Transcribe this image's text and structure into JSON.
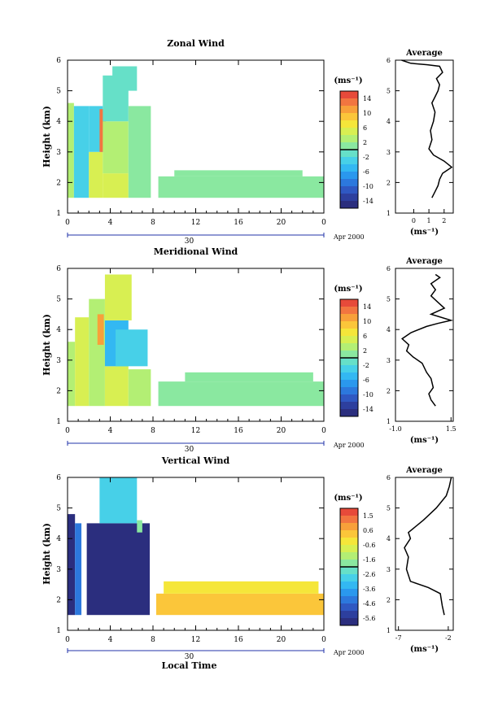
{
  "figure": {
    "x_axis_label": "Local Time",
    "date_label": "Apr 2000",
    "day_label": "30"
  },
  "colorbar": {
    "colors": [
      "#2b2e7e",
      "#2d3f9e",
      "#2f58c2",
      "#2c78dd",
      "#2a98ee",
      "#33b8f2",
      "#47d0e8",
      "#66e0c8",
      "#8ae8a0",
      "#b3ef74",
      "#d8ef52",
      "#f5e63a",
      "#fbc63a",
      "#f8a03a",
      "#f27540",
      "#e74a3a"
    ]
  },
  "chart_data": [
    {
      "type": "heatmap",
      "title": "Zonal Wind",
      "xlabel": "",
      "ylabel": "Height (km)",
      "xlim": [
        0,
        24
      ],
      "ylim": [
        1,
        6
      ],
      "xticks": [
        "0",
        "4",
        "8",
        "12",
        "16",
        "20",
        "0"
      ],
      "yticks": [
        "1",
        "2",
        "3",
        "4",
        "5",
        "6"
      ],
      "units": "(ms⁻¹)",
      "colorbar_labels": [
        "14",
        "10",
        "6",
        "2",
        "-2",
        "-6",
        "-10",
        "-14"
      ],
      "colorbar_range": [
        -16,
        16
      ],
      "grid": false,
      "regions": [
        {
          "x": [
            0,
            0.6
          ],
          "y": [
            1.5,
            4.6
          ],
          "value": 2
        },
        {
          "x": [
            0.6,
            2.0
          ],
          "y": [
            1.5,
            4.5
          ],
          "value": -3
        },
        {
          "x": [
            2.0,
            3.3
          ],
          "y": [
            1.5,
            3.0
          ],
          "value": 4
        },
        {
          "x": [
            2.0,
            3.3
          ],
          "y": [
            3.0,
            4.5
          ],
          "value": -4
        },
        {
          "x": [
            3.0,
            3.6
          ],
          "y": [
            3.0,
            4.4
          ],
          "value": 13
        },
        {
          "x": [
            3.3,
            5.7
          ],
          "y": [
            1.5,
            2.3
          ],
          "value": 4
        },
        {
          "x": [
            3.3,
            5.7
          ],
          "y": [
            2.3,
            4.0
          ],
          "value": 2
        },
        {
          "x": [
            3.3,
            5.7
          ],
          "y": [
            4.0,
            5.5
          ],
          "value": -1
        },
        {
          "x": [
            4.2,
            6.5
          ],
          "y": [
            5.0,
            5.8
          ],
          "value": -2
        },
        {
          "x": [
            5.7,
            7.8
          ],
          "y": [
            1.5,
            4.5
          ],
          "value": 1
        },
        {
          "x": [
            8.5,
            24
          ],
          "y": [
            1.5,
            2.2
          ],
          "value": 0
        },
        {
          "x": [
            10.0,
            22.0
          ],
          "y": [
            2.2,
            2.4
          ],
          "value": 0
        }
      ],
      "profile": {
        "title": "Average",
        "xlabel": "(ms⁻¹)",
        "xlim": [
          -1.2,
          2.6
        ],
        "xticks": [
          "0",
          "1",
          "2"
        ],
        "yticks": [
          "1",
          "2",
          "3",
          "4",
          "5",
          "6"
        ],
        "x": [
          1.2,
          1.4,
          1.6,
          1.7,
          1.9,
          2.2,
          2.5,
          2.0,
          1.3,
          1.0,
          1.2,
          1.1,
          1.3,
          1.4,
          1.2,
          1.4,
          1.6,
          1.7,
          1.5,
          1.9,
          1.7,
          0.9,
          -0.2,
          -0.8
        ],
        "y": [
          1.5,
          1.7,
          1.9,
          2.1,
          2.3,
          2.4,
          2.5,
          2.7,
          2.9,
          3.1,
          3.4,
          3.7,
          4.0,
          4.3,
          4.6,
          4.8,
          5.0,
          5.2,
          5.4,
          5.6,
          5.8,
          5.85,
          5.9,
          6.0
        ]
      }
    },
    {
      "type": "heatmap",
      "title": "Meridional Wind",
      "xlabel": "",
      "ylabel": "Height (km)",
      "xlim": [
        0,
        24
      ],
      "ylim": [
        1,
        6
      ],
      "xticks": [
        "0",
        "4",
        "8",
        "12",
        "16",
        "20",
        "0"
      ],
      "yticks": [
        "1",
        "2",
        "3",
        "4",
        "5",
        "6"
      ],
      "units": "(ms⁻¹)",
      "colorbar_labels": [
        "14",
        "10",
        "6",
        "2",
        "-2",
        "-6",
        "-10",
        "-14"
      ],
      "colorbar_range": [
        -16,
        16
      ],
      "grid": false,
      "regions": [
        {
          "x": [
            0,
            0.7
          ],
          "y": [
            1.5,
            3.6
          ],
          "value": 2
        },
        {
          "x": [
            0.7,
            2.0
          ],
          "y": [
            1.5,
            4.4
          ],
          "value": 4
        },
        {
          "x": [
            2.0,
            3.5
          ],
          "y": [
            1.5,
            5.0
          ],
          "value": 3
        },
        {
          "x": [
            2.8,
            3.4
          ],
          "y": [
            3.5,
            4.5
          ],
          "value": 11
        },
        {
          "x": [
            3.5,
            5.7
          ],
          "y": [
            1.5,
            2.8
          ],
          "value": 5
        },
        {
          "x": [
            3.5,
            5.7
          ],
          "y": [
            2.8,
            4.3
          ],
          "value": -5
        },
        {
          "x": [
            4.5,
            7.5
          ],
          "y": [
            2.8,
            4.0
          ],
          "value": -3
        },
        {
          "x": [
            3.5,
            6.0
          ],
          "y": [
            4.3,
            5.8
          ],
          "value": 4
        },
        {
          "x": [
            5.7,
            7.8
          ],
          "y": [
            1.5,
            2.7
          ],
          "value": 2
        },
        {
          "x": [
            8.5,
            24
          ],
          "y": [
            1.5,
            2.3
          ],
          "value": 1
        },
        {
          "x": [
            11.0,
            23.0
          ],
          "y": [
            2.3,
            2.6
          ],
          "value": 0
        }
      ],
      "profile": {
        "title": "Average",
        "xlabel": "(ms⁻¹)",
        "xlim": [
          -1.0,
          1.6
        ],
        "xticks": [
          "-1.0",
          "1.5"
        ],
        "yticks": [
          "1",
          "2",
          "3",
          "4",
          "5",
          "6"
        ],
        "x": [
          0.8,
          0.6,
          0.5,
          0.7,
          0.6,
          0.4,
          0.2,
          -0.2,
          -0.5,
          -0.4,
          -0.7,
          -0.3,
          0.4,
          0.9,
          1.5,
          0.6,
          1.2,
          0.9,
          0.6,
          0.8,
          0.6,
          1.0,
          0.8
        ],
        "y": [
          1.5,
          1.7,
          1.9,
          2.1,
          2.4,
          2.6,
          2.9,
          3.1,
          3.3,
          3.5,
          3.7,
          3.9,
          4.1,
          4.2,
          4.3,
          4.5,
          4.7,
          4.9,
          5.1,
          5.3,
          5.5,
          5.7,
          5.8
        ]
      }
    },
    {
      "type": "heatmap",
      "title": "Vertical Wind",
      "xlabel": "Local Time",
      "ylabel": "Height (km)",
      "xlim": [
        0,
        24
      ],
      "ylim": [
        1,
        6
      ],
      "xticks": [
        "0",
        "4",
        "8",
        "12",
        "16",
        "20",
        "0"
      ],
      "yticks": [
        "1",
        "2",
        "3",
        "4",
        "5",
        "6"
      ],
      "units": "(ms⁻¹)",
      "colorbar_labels": [
        "1.5",
        "0.6",
        "-0.6",
        "-1.6",
        "-2.6",
        "-3.6",
        "-4.6",
        "-5.6"
      ],
      "colorbar_range": [
        -6.1,
        2.0
      ],
      "grid": false,
      "regions": [
        {
          "x": [
            0,
            0.7
          ],
          "y": [
            1.5,
            4.8
          ],
          "value": -6
        },
        {
          "x": [
            0.7,
            1.3
          ],
          "y": [
            1.5,
            4.5
          ],
          "value": -4.5
        },
        {
          "x": [
            1.8,
            7.7
          ],
          "y": [
            1.5,
            4.5
          ],
          "value": -6
        },
        {
          "x": [
            3.0,
            6.5
          ],
          "y": [
            4.5,
            6.0
          ],
          "value": -3
        },
        {
          "x": [
            6.5,
            7.0
          ],
          "y": [
            4.2,
            4.6
          ],
          "value": -2
        },
        {
          "x": [
            8.3,
            24
          ],
          "y": [
            1.5,
            2.2
          ],
          "value": 0.2
        },
        {
          "x": [
            9.0,
            23.5
          ],
          "y": [
            2.2,
            2.6
          ],
          "value": -0.4
        }
      ],
      "profile": {
        "title": "Average",
        "xlabel": "(ms⁻¹)",
        "xlim": [
          -7.3,
          -1.5
        ],
        "xticks": [
          "-7",
          "-2"
        ],
        "yticks": [
          "1",
          "2",
          "3",
          "4",
          "5",
          "6"
        ],
        "x": [
          -2.4,
          -2.6,
          -2.8,
          -4.0,
          -5.8,
          -6.2,
          -6.0,
          -6.4,
          -5.8,
          -6.0,
          -4.5,
          -3.2,
          -2.2,
          -1.9,
          -1.7
        ],
        "y": [
          1.5,
          1.8,
          2.2,
          2.4,
          2.6,
          3.0,
          3.4,
          3.7,
          4.0,
          4.2,
          4.6,
          5.0,
          5.4,
          5.7,
          6.0
        ]
      }
    }
  ]
}
